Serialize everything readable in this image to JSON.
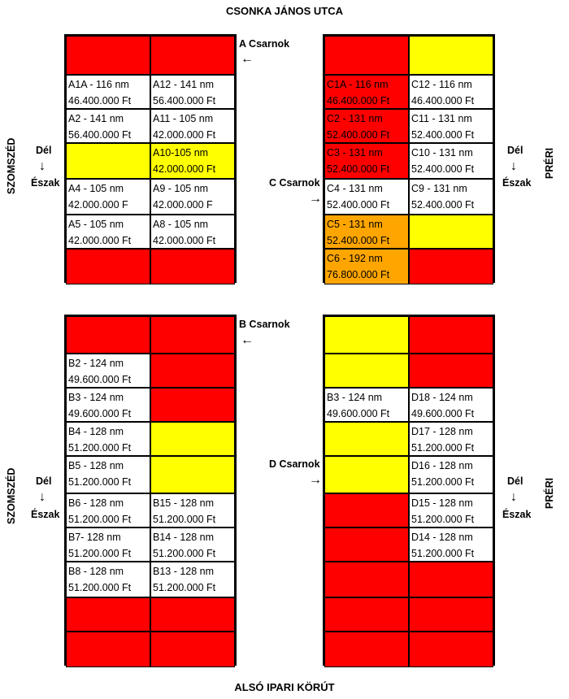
{
  "streets": {
    "top": "CSONKA JÁNOS UTCA",
    "bottom": "ALSÓ IPARI KÖRÚT"
  },
  "sides": {
    "left": "SZOMSZÉD",
    "right": "PRÉRI"
  },
  "compass": {
    "south": "Dél",
    "north": "Észak",
    "arrow_down": "↓"
  },
  "arrows": {
    "left": "←",
    "right": "→"
  },
  "halls": {
    "a": "A Csarnok",
    "b": "B Csarnok",
    "c": "C Csarnok",
    "d": "D Csarnok"
  },
  "colors": {
    "red": "#ff0000",
    "yellow": "#ffff00",
    "orange": "#ffa500",
    "white": "#ffffff"
  },
  "block_a": [
    {
      "l1": "",
      "l2": "",
      "c": "red"
    },
    {
      "l1": "",
      "l2": "",
      "c": "red"
    },
    {
      "l1": "A1A - 116 nm",
      "l2": "46.400.000 Ft",
      "c": "white"
    },
    {
      "l1": "A12 - 141 nm",
      "l2": "56.400.000 Ft",
      "c": "white"
    },
    {
      "l1": "A2 - 141 nm",
      "l2": "56.400.000 Ft",
      "c": "white"
    },
    {
      "l1": "A11 - 105 nm",
      "l2": "42.000.000 Ft",
      "c": "white"
    },
    {
      "l1": "",
      "l2": "",
      "c": "yellow"
    },
    {
      "l1": "A10-105 nm",
      "l2": "42.000.000 Ft",
      "c": "yellow"
    },
    {
      "l1": "A4 - 105 nm",
      "l2": "42.000.000 F",
      "c": "white"
    },
    {
      "l1": "A9 - 105 nm",
      "l2": "42.000.000 F",
      "c": "white"
    },
    {
      "l1": "A5 - 105 nm",
      "l2": "42.000.000 Ft",
      "c": "white"
    },
    {
      "l1": "A8 - 105 nm",
      "l2": "42.000.000 Ft",
      "c": "white"
    },
    {
      "l1": "",
      "l2": "",
      "c": "red"
    },
    {
      "l1": "",
      "l2": "",
      "c": "red"
    }
  ],
  "block_c": [
    {
      "l1": "",
      "l2": "",
      "c": "red"
    },
    {
      "l1": "",
      "l2": "",
      "c": "yellow"
    },
    {
      "l1": "C1A - 116 nm",
      "l2": "46.400.000 Ft",
      "c": "red"
    },
    {
      "l1": "C12 - 116 nm",
      "l2": "46.400.000 Ft",
      "c": "white"
    },
    {
      "l1": "C2 - 131 nm",
      "l2": "52.400.000 Ft",
      "c": "red"
    },
    {
      "l1": "C11 - 131 nm",
      "l2": "52.400.000 Ft",
      "c": "white"
    },
    {
      "l1": "C3 - 131 nm",
      "l2": "52.400.000 Ft",
      "c": "red"
    },
    {
      "l1": "C10 - 131 nm",
      "l2": "52.400.000 Ft",
      "c": "white"
    },
    {
      "l1": "C4 - 131 nm",
      "l2": "52.400.000 Ft",
      "c": "white"
    },
    {
      "l1": "C9 - 131 nm",
      "l2": "52.400.000 Ft",
      "c": "white"
    },
    {
      "l1": "C5 - 131 nm",
      "l2": "52.400.000 Ft",
      "c": "orange"
    },
    {
      "l1": "",
      "l2": "",
      "c": "yellow"
    },
    {
      "l1": "C6 - 192 nm",
      "l2": "76.800.000 Ft",
      "c": "orange"
    },
    {
      "l1": "",
      "l2": "",
      "c": "red"
    }
  ],
  "block_b": [
    {
      "l1": "",
      "l2": "",
      "c": "red"
    },
    {
      "l1": "",
      "l2": "",
      "c": "red"
    },
    {
      "l1": "B2 - 124 nm",
      "l2": "49.600.000 Ft",
      "c": "white"
    },
    {
      "l1": "",
      "l2": "",
      "c": "red"
    },
    {
      "l1": "B3 - 124 nm",
      "l2": "49.600.000 Ft",
      "c": "white"
    },
    {
      "l1": "",
      "l2": "",
      "c": "red"
    },
    {
      "l1": "B4 - 128 nm",
      "l2": "51.200.000 Ft",
      "c": "white"
    },
    {
      "l1": "",
      "l2": "",
      "c": "yellow"
    },
    {
      "l1": "B5 - 128 nm",
      "l2": "51.200.000 Ft",
      "c": "white"
    },
    {
      "l1": "",
      "l2": "",
      "c": "yellow"
    },
    {
      "l1": "B6 - 128 nm",
      "l2": "51.200.000 Ft",
      "c": "white"
    },
    {
      "l1": "B15 - 128 nm",
      "l2": "51.200.000 Ft",
      "c": "white"
    },
    {
      "l1": "B7- 128 nm",
      "l2": "51.200.000 Ft",
      "c": "white"
    },
    {
      "l1": "B14 - 128 nm",
      "l2": "51.200.000 Ft",
      "c": "white"
    },
    {
      "l1": "B8 - 128 nm",
      "l2": "51.200.000 Ft",
      "c": "white"
    },
    {
      "l1": "B13 - 128 nm",
      "l2": "51.200.000 Ft",
      "c": "white"
    },
    {
      "l1": "",
      "l2": "",
      "c": "red"
    },
    {
      "l1": "",
      "l2": "",
      "c": "red"
    },
    {
      "l1": "",
      "l2": "",
      "c": "red"
    },
    {
      "l1": "",
      "l2": "",
      "c": "red"
    }
  ],
  "block_d": [
    {
      "l1": "",
      "l2": "",
      "c": "yellow"
    },
    {
      "l1": "",
      "l2": "",
      "c": "red"
    },
    {
      "l1": "",
      "l2": "",
      "c": "yellow"
    },
    {
      "l1": "",
      "l2": "",
      "c": "red"
    },
    {
      "l1": "B3 - 124 nm",
      "l2": "49.600.000 Ft",
      "c": "white"
    },
    {
      "l1": "D18 - 124 nm",
      "l2": "49.600.000 Ft",
      "c": "white"
    },
    {
      "l1": "",
      "l2": "",
      "c": "yellow"
    },
    {
      "l1": "D17 - 128 nm",
      "l2": "51.200.000 Ft",
      "c": "white"
    },
    {
      "l1": "",
      "l2": "",
      "c": "yellow"
    },
    {
      "l1": "D16 - 128 nm",
      "l2": "51.200.000 Ft",
      "c": "white"
    },
    {
      "l1": "",
      "l2": "",
      "c": "red"
    },
    {
      "l1": "D15 - 128 nm",
      "l2": "51.200.000 Ft",
      "c": "white"
    },
    {
      "l1": "",
      "l2": "",
      "c": "red"
    },
    {
      "l1": "D14 - 128 nm",
      "l2": "51.200.000 Ft",
      "c": "white"
    },
    {
      "l1": "",
      "l2": "",
      "c": "red"
    },
    {
      "l1": "",
      "l2": "",
      "c": "red"
    },
    {
      "l1": "",
      "l2": "",
      "c": "red"
    },
    {
      "l1": "",
      "l2": "",
      "c": "red"
    },
    {
      "l1": "",
      "l2": "",
      "c": "red"
    },
    {
      "l1": "",
      "l2": "",
      "c": "red"
    }
  ]
}
